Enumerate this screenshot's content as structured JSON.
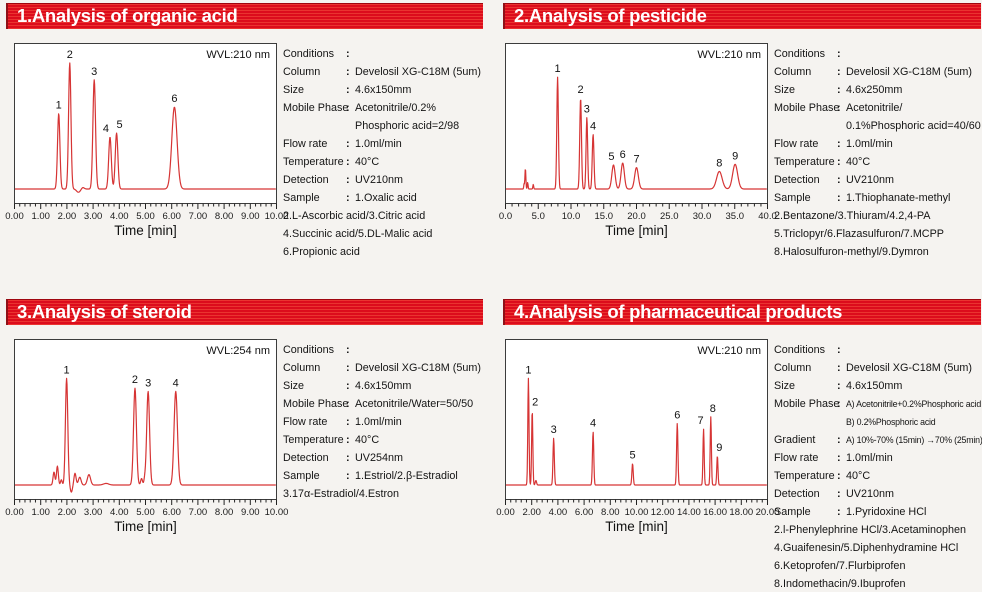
{
  "page": {
    "background_color": "#f5f3f0",
    "banner_color": "#e00f1f",
    "trace_color": "#d63434",
    "frame_color": "#3c3c3c"
  },
  "panels": [
    {
      "title": "1.Analysis of organic acid",
      "conditions": [
        {
          "label": "Conditions",
          "values": [
            ""
          ]
        },
        {
          "label": "Column",
          "values": [
            "Develosil XG-C18M (5um)"
          ]
        },
        {
          "label": "Size",
          "values": [
            "4.6x150mm"
          ]
        },
        {
          "label": "Mobile Phase",
          "values": [
            "Acetonitrile/0.2%",
            "Phosphoric acid=2/98"
          ]
        },
        {
          "label": "Flow rate",
          "values": [
            "1.0ml/min"
          ]
        },
        {
          "label": "Temperature",
          "values": [
            "40°C"
          ]
        },
        {
          "label": "Detection",
          "values": [
            "UV210nm"
          ]
        },
        {
          "label": "Sample",
          "values": [
            "1.Oxalic acid"
          ]
        }
      ],
      "sample_lines": [
        "2.L-Ascorbic acid/3.Citric acid",
        "4.Succinic acid/5.DL-Malic acid",
        "6.Propionic acid"
      ]
    },
    {
      "title": "2.Analysis of pesticide",
      "conditions": [
        {
          "label": "Conditions",
          "values": [
            ""
          ]
        },
        {
          "label": "Column",
          "values": [
            "Develosil XG-C18M (5um)"
          ]
        },
        {
          "label": "Size",
          "values": [
            "4.6x250mm"
          ]
        },
        {
          "label": "Mobile Phase",
          "values": [
            "Acetonitrile/",
            "0.1%Phosphoric acid=40/60"
          ]
        },
        {
          "label": "Flow rate",
          "values": [
            "1.0ml/min"
          ]
        },
        {
          "label": "Temperature",
          "values": [
            "40°C"
          ]
        },
        {
          "label": "Detection",
          "values": [
            "UV210nm"
          ]
        },
        {
          "label": "Sample",
          "values": [
            "1.Thiophanate-methyl"
          ]
        }
      ],
      "sample_lines": [
        "2.Bentazone/3.Thiuram/4.2,4-PA",
        "5.Triclopyr/6.Flazasulfuron/7.MCPP",
        "8.Halosulfuron-methyl/9.Dymron"
      ]
    },
    {
      "title": "3.Analysis of steroid",
      "conditions": [
        {
          "label": "Conditions",
          "values": [
            ""
          ]
        },
        {
          "label": "Column",
          "values": [
            "Develosil XG-C18M (5um)"
          ]
        },
        {
          "label": "Size",
          "values": [
            "4.6x150mm"
          ]
        },
        {
          "label": "Mobile Phase",
          "values": [
            "Acetonitrile/Water=50/50"
          ]
        },
        {
          "label": "Flow rate",
          "values": [
            "1.0ml/min"
          ]
        },
        {
          "label": "Temperature",
          "values": [
            "40°C"
          ]
        },
        {
          "label": "Detection",
          "values": [
            "UV254nm"
          ]
        },
        {
          "label": "Sample",
          "values": [
            "1.Estriol/2.β-Estradiol"
          ]
        }
      ],
      "sample_lines": [
        "3.17α-Estradiol/4.Estron"
      ]
    },
    {
      "title": "4.Analysis of pharmaceutical products",
      "conditions": [
        {
          "label": "Conditions",
          "values": [
            ""
          ]
        },
        {
          "label": "Column",
          "values": [
            "Develosil XG-C18M (5um)"
          ]
        },
        {
          "label": "Size",
          "values": [
            "4.6x150mm"
          ]
        },
        {
          "label": "Mobile Phase",
          "values": [
            "A) Acetonitrile+0.2%Phosphoric acid",
            "B) 0.2%Phosphoric acid"
          ],
          "small": true
        },
        {
          "label": "Gradient",
          "values": [
            "A) 10%-70% (15min) →70% (25min)"
          ],
          "small": true
        },
        {
          "label": "Flow rate",
          "values": [
            "1.0ml/min"
          ]
        },
        {
          "label": "Temperature",
          "values": [
            "40°C"
          ]
        },
        {
          "label": "Detection",
          "values": [
            "UV210nm"
          ]
        },
        {
          "label": "Sample",
          "values": [
            "1.Pyridoxine HCl"
          ]
        }
      ],
      "sample_lines": [
        "2.l-Phenylephrine HCl/3.Acetaminophen",
        "4.Guaifenesin/5.Diphenhydramine HCl",
        "6.Ketoprofen/7.Flurbiprofen",
        "8.Indomethacin/9.Ibuprofen"
      ]
    }
  ],
  "chart_data": [
    {
      "type": "line",
      "title": "1.Analysis of organic acid",
      "wavelength": "WVL:210 nm",
      "xlabel": "Time [min]",
      "x_range": [
        0,
        10
      ],
      "x_ticks": [
        "0.00",
        "1.00",
        "2.00",
        "3.00",
        "4.00",
        "5.00",
        "6.00",
        "7.00",
        "8.00",
        "9.00",
        "10.00"
      ],
      "minor_per_major": 5,
      "peaks": [
        {
          "label": "1",
          "t": 1.7,
          "h": 0.58,
          "w": 0.045
        },
        {
          "label": "2",
          "t": 2.12,
          "h": 0.97,
          "w": 0.045
        },
        {
          "label": "3",
          "t": 3.05,
          "h": 0.84,
          "w": 0.05
        },
        {
          "label": "4",
          "t": 3.65,
          "h": 0.4,
          "w": 0.05,
          "dx": -4
        },
        {
          "label": "5",
          "t": 3.9,
          "h": 0.43,
          "w": 0.05,
          "dx": 3
        },
        {
          "label": "6",
          "t": 6.1,
          "h": 0.63,
          "w": 0.1
        }
      ],
      "features": [
        {
          "t": 2.45,
          "h": -0.025,
          "w": 0.07
        },
        {
          "t": 2.62,
          "h": 0.012,
          "w": 0.05
        }
      ]
    },
    {
      "type": "line",
      "title": "2.Analysis of pesticide",
      "wavelength": "WVL:210 nm",
      "xlabel": "Time [min]",
      "x_range": [
        0,
        40
      ],
      "x_ticks": [
        "0.0",
        "5.0",
        "10.0",
        "15.0",
        "20.0",
        "25.0",
        "30.0",
        "35.0",
        "40.0"
      ],
      "minor_per_major": 5,
      "peaks": [
        {
          "label": "1",
          "t": 8.0,
          "h": 0.86,
          "w": 0.12
        },
        {
          "label": "2",
          "t": 11.5,
          "h": 0.7,
          "w": 0.13
        },
        {
          "label": "3",
          "t": 12.45,
          "h": 0.55,
          "w": 0.12
        },
        {
          "label": "4",
          "t": 13.4,
          "h": 0.42,
          "w": 0.13
        },
        {
          "label": "5",
          "t": 16.5,
          "h": 0.185,
          "w": 0.25,
          "dx": -2
        },
        {
          "label": "6",
          "t": 17.9,
          "h": 0.2,
          "w": 0.25
        },
        {
          "label": "7",
          "t": 20.0,
          "h": 0.165,
          "w": 0.28
        },
        {
          "label": "8",
          "t": 32.6,
          "h": 0.135,
          "w": 0.42
        },
        {
          "label": "9",
          "t": 35.0,
          "h": 0.19,
          "w": 0.38
        }
      ],
      "features": [
        {
          "t": 2.9,
          "h": 0.04,
          "w": 0.05
        },
        {
          "t": 3.1,
          "h": 0.16,
          "w": 0.07
        },
        {
          "t": 3.45,
          "h": 0.05,
          "w": 0.06
        },
        {
          "t": 4.3,
          "h": 0.035,
          "w": 0.06
        }
      ]
    },
    {
      "type": "line",
      "title": "3.Analysis of steroid",
      "wavelength": "WVL:254 nm",
      "xlabel": "Time [min]",
      "x_range": [
        0,
        10
      ],
      "x_ticks": [
        "0.00",
        "1.00",
        "2.00",
        "3.00",
        "4.00",
        "5.00",
        "6.00",
        "7.00",
        "8.00",
        "9.00",
        "10.00"
      ],
      "minor_per_major": 5,
      "peaks": [
        {
          "label": "1",
          "t": 2.0,
          "h": 0.82,
          "w": 0.045
        },
        {
          "label": "2",
          "t": 4.6,
          "h": 0.745,
          "w": 0.055
        },
        {
          "label": "3",
          "t": 5.1,
          "h": 0.72,
          "w": 0.055
        },
        {
          "label": "4",
          "t": 6.15,
          "h": 0.72,
          "w": 0.065
        }
      ],
      "features": [
        {
          "t": 1.52,
          "h": 0.1,
          "w": 0.035
        },
        {
          "t": 1.65,
          "h": 0.145,
          "w": 0.035
        },
        {
          "t": 1.8,
          "h": 0.04,
          "w": 0.03
        },
        {
          "t": 2.18,
          "h": -0.055,
          "w": 0.04
        },
        {
          "t": 2.32,
          "h": 0.09,
          "w": 0.04
        },
        {
          "t": 2.5,
          "h": 0.06,
          "w": 0.05
        },
        {
          "t": 2.85,
          "h": 0.08,
          "w": 0.06
        },
        {
          "t": 3.5,
          "h": 0.012,
          "w": 0.1
        },
        {
          "t": 4.85,
          "h": 0.05,
          "w": 0.035
        },
        {
          "t": 4.97,
          "h": 0.04,
          "w": 0.03
        }
      ]
    },
    {
      "type": "line",
      "title": "4.Analysis of pharmaceutical products",
      "wavelength": "WVL:210 nm",
      "xlabel": "Time [min]",
      "x_range": [
        0,
        20
      ],
      "x_ticks": [
        "0.00",
        "2.00",
        "4.00",
        "6.00",
        "8.00",
        "10.00",
        "12.00",
        "14.00",
        "16.00",
        "18.00",
        "20.00"
      ],
      "minor_per_major": 5,
      "peaks": [
        {
          "label": "1",
          "t": 1.78,
          "h": 0.82,
          "w": 0.045
        },
        {
          "label": "2",
          "t": 2.07,
          "h": 0.575,
          "w": 0.045,
          "dx": 3
        },
        {
          "label": "3",
          "t": 3.7,
          "h": 0.36,
          "w": 0.05
        },
        {
          "label": "4",
          "t": 6.7,
          "h": 0.41,
          "w": 0.05
        },
        {
          "label": "5",
          "t": 9.7,
          "h": 0.165,
          "w": 0.05
        },
        {
          "label": "6",
          "t": 13.1,
          "h": 0.475,
          "w": 0.05
        },
        {
          "label": "7",
          "t": 15.1,
          "h": 0.43,
          "w": 0.045,
          "dx": -3
        },
        {
          "label": "8",
          "t": 15.65,
          "h": 0.525,
          "w": 0.045,
          "dx": 2
        },
        {
          "label": "9",
          "t": 16.15,
          "h": 0.225,
          "w": 0.045,
          "dx": 2
        }
      ],
      "features": [
        {
          "t": 2.35,
          "h": 0.035,
          "w": 0.05
        }
      ]
    }
  ]
}
